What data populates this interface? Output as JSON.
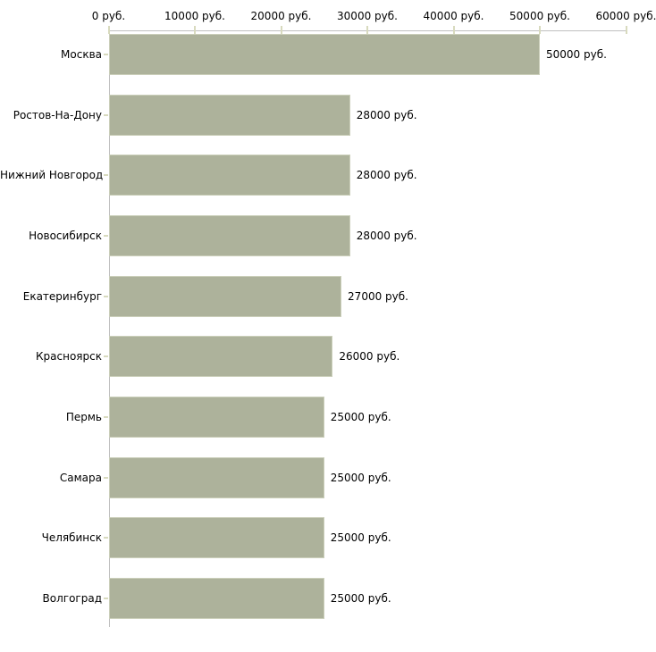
{
  "chart_data": {
    "type": "bar",
    "orientation": "horizontal",
    "title": "",
    "unit": "руб.",
    "xlim": [
      0,
      60000
    ],
    "grid": false,
    "legend": false,
    "x_ticks": [
      {
        "value": 0,
        "label": "0 руб."
      },
      {
        "value": 10000,
        "label": "10000 руб."
      },
      {
        "value": 20000,
        "label": "20000 руб."
      },
      {
        "value": 30000,
        "label": "30000 руб."
      },
      {
        "value": 40000,
        "label": "40000 руб."
      },
      {
        "value": 50000,
        "label": "50000 руб."
      },
      {
        "value": 60000,
        "label": "60000 руб."
      }
    ],
    "categories": [
      "Москва",
      "Ростов-На-Дону",
      "Нижний Новгород",
      "Новосибирск",
      "Екатеринбург",
      "Красноярск",
      "Пермь",
      "Самара",
      "Челябинск",
      "Волгоград"
    ],
    "values": [
      50000,
      28000,
      28000,
      28000,
      27000,
      26000,
      25000,
      25000,
      25000,
      25000
    ],
    "value_labels": [
      "50000 руб.",
      "28000 руб.",
      "28000 руб.",
      "28000 руб.",
      "27000 руб.",
      "26000 руб.",
      "25000 руб.",
      "25000 руб.",
      "25000 руб.",
      "25000 руб."
    ],
    "colors": {
      "bar_fill": "#adb29b",
      "bar_border": "#cbcfba",
      "axis_line": "#c0c0c0",
      "tick_mark": "#d8dabe",
      "text": "#000000",
      "background": "#ffffff"
    }
  }
}
